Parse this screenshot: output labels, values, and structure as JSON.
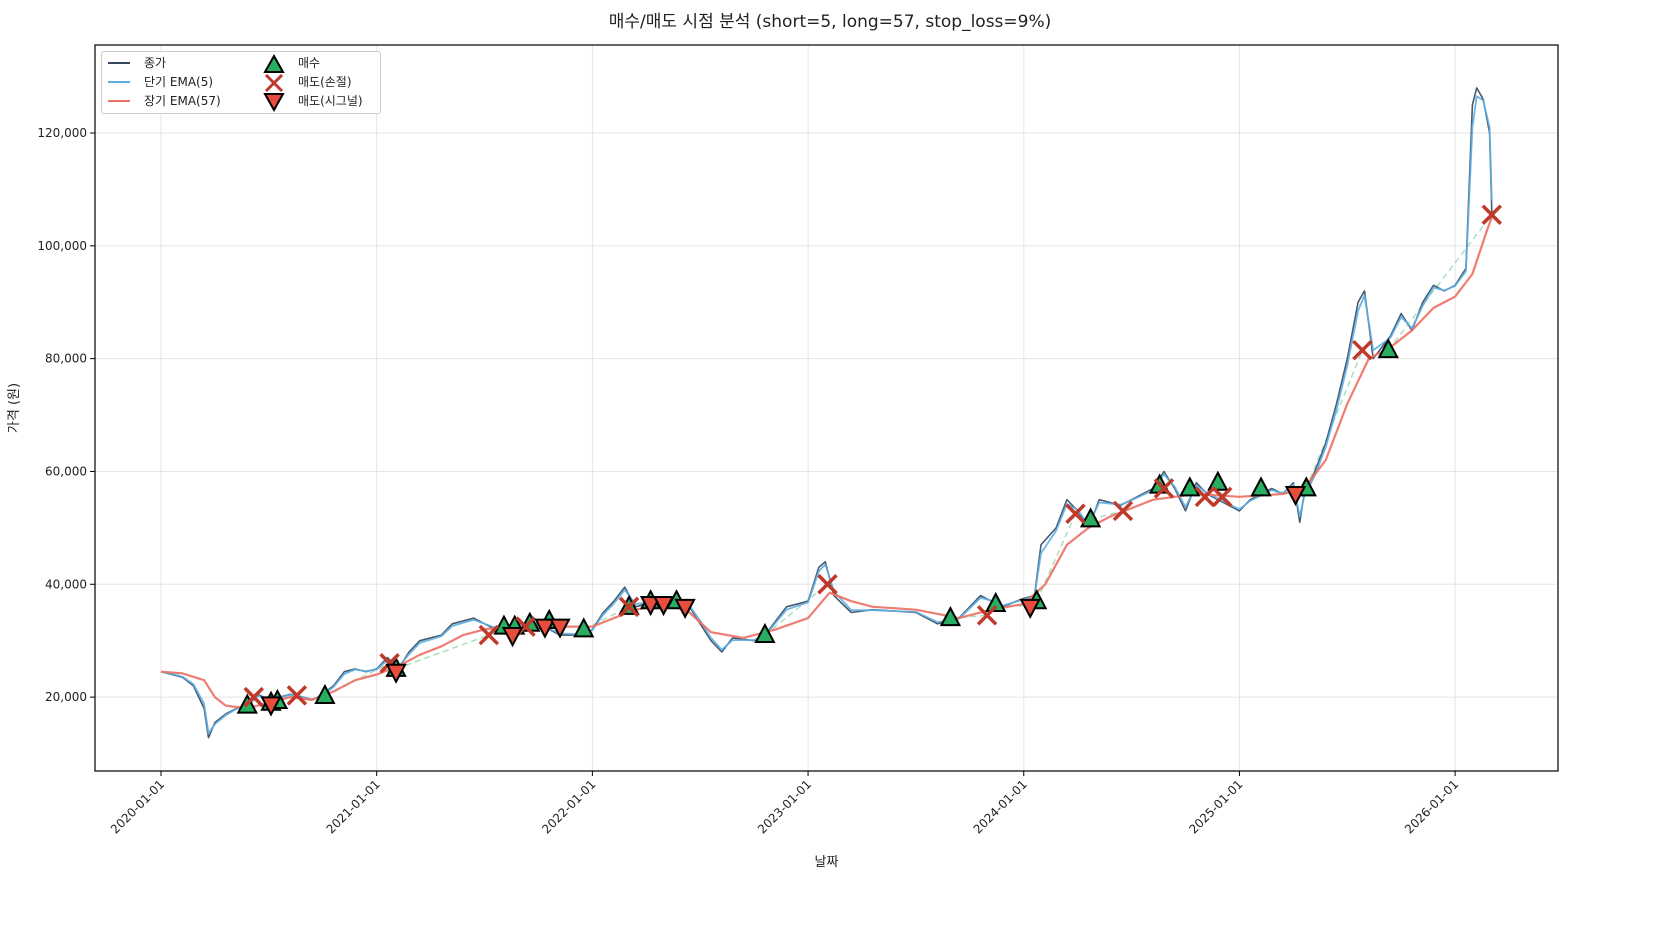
{
  "chart_data": {
    "type": "line",
    "title": "매수/매도 시점 분석 (short=5, long=57, stop_loss=9%)",
    "xlabel": "날짜",
    "ylabel": "가격 (원)",
    "x_unit": "years since 2020-01-01",
    "xlim": [
      -0.306,
      6.477
    ],
    "ylim": [
      6900,
      135600
    ],
    "grid": true,
    "legend_position": "top-left",
    "x_ticks": [
      {
        "value": 0,
        "label": "2020-01-01"
      },
      {
        "value": 1,
        "label": "2021-01-01"
      },
      {
        "value": 2,
        "label": "2022-01-01"
      },
      {
        "value": 3,
        "label": "2023-01-01"
      },
      {
        "value": 4,
        "label": "2024-01-01"
      },
      {
        "value": 5,
        "label": "2025-01-01"
      },
      {
        "value": 6,
        "label": "2026-01-01"
      }
    ],
    "y_ticks": [
      {
        "value": 20000,
        "label": "20,000"
      },
      {
        "value": 40000,
        "label": "40,000"
      },
      {
        "value": 60000,
        "label": "60,000"
      },
      {
        "value": 80000,
        "label": "80,000"
      },
      {
        "value": 100000,
        "label": "100,000"
      },
      {
        "value": 120000,
        "label": "120,000"
      }
    ],
    "series": [
      {
        "name": "종가",
        "color": "#34495e",
        "x": [
          0,
          0.05,
          0.1,
          0.15,
          0.2,
          0.22,
          0.25,
          0.3,
          0.35,
          0.4,
          0.45,
          0.5,
          0.55,
          0.6,
          0.65,
          0.7,
          0.75,
          0.8,
          0.85,
          0.9,
          0.95,
          1.0,
          1.05,
          1.1,
          1.15,
          1.2,
          1.3,
          1.35,
          1.45,
          1.55,
          1.65,
          1.75,
          1.85,
          1.95,
          2.0,
          2.05,
          2.1,
          2.15,
          2.2,
          2.3,
          2.4,
          2.45,
          2.5,
          2.55,
          2.6,
          2.65,
          2.75,
          2.8,
          2.9,
          3.0,
          3.05,
          3.08,
          3.12,
          3.2,
          3.3,
          3.5,
          3.6,
          3.7,
          3.8,
          3.85,
          3.9,
          4.0,
          4.05,
          4.08,
          4.15,
          4.2,
          4.25,
          4.3,
          4.35,
          4.45,
          4.5,
          4.6,
          4.65,
          4.7,
          4.75,
          4.8,
          4.85,
          4.9,
          5.0,
          5.05,
          5.15,
          5.2,
          5.25,
          5.28,
          5.3,
          5.35,
          5.4,
          5.45,
          5.5,
          5.55,
          5.58,
          5.62,
          5.7,
          5.75,
          5.8,
          5.85,
          5.9,
          5.95,
          6.0,
          6.05,
          6.08,
          6.1,
          6.13,
          6.16,
          6.17
        ],
        "y": [
          24500,
          24000,
          23500,
          22000,
          18000,
          12800,
          15500,
          17000,
          18000,
          18500,
          20500,
          19500,
          20000,
          20500,
          20000,
          19500,
          20500,
          22000,
          24500,
          25000,
          24500,
          25000,
          27000,
          25000,
          28000,
          30000,
          31000,
          33000,
          34000,
          32000,
          33000,
          33000,
          31000,
          31000,
          32000,
          35000,
          37000,
          39500,
          36000,
          37000,
          37000,
          36000,
          33000,
          30000,
          28000,
          30500,
          30000,
          31000,
          36000,
          37000,
          43000,
          44000,
          38000,
          35000,
          35500,
          35000,
          33000,
          34000,
          38000,
          37000,
          36000,
          37500,
          38000,
          47000,
          50000,
          55000,
          53000,
          50000,
          55000,
          54000,
          55000,
          57000,
          60000,
          57000,
          53000,
          58000,
          56000,
          55000,
          53000,
          55000,
          57000,
          56000,
          58000,
          51000,
          56000,
          60000,
          65000,
          72000,
          80000,
          90000,
          92000,
          80000,
          84000,
          88000,
          85000,
          90000,
          93000,
          92000,
          93000,
          96000,
          125000,
          128000,
          126000,
          120000,
          106000
        ]
      },
      {
        "name": "단기 EMA(5)",
        "color": "#5dade2",
        "x": [
          0,
          0.05,
          0.1,
          0.15,
          0.2,
          0.22,
          0.25,
          0.3,
          0.35,
          0.4,
          0.45,
          0.5,
          0.55,
          0.6,
          0.65,
          0.7,
          0.75,
          0.8,
          0.85,
          0.9,
          0.95,
          1.0,
          1.05,
          1.1,
          1.15,
          1.2,
          1.3,
          1.35,
          1.45,
          1.55,
          1.65,
          1.75,
          1.85,
          1.95,
          2.0,
          2.05,
          2.1,
          2.15,
          2.2,
          2.3,
          2.4,
          2.45,
          2.5,
          2.55,
          2.6,
          2.65,
          2.75,
          2.8,
          2.9,
          3.0,
          3.05,
          3.08,
          3.12,
          3.2,
          3.3,
          3.5,
          3.6,
          3.7,
          3.8,
          3.85,
          3.9,
          4.0,
          4.05,
          4.08,
          4.15,
          4.2,
          4.25,
          4.3,
          4.35,
          4.45,
          4.5,
          4.6,
          4.65,
          4.7,
          4.75,
          4.8,
          4.85,
          4.9,
          5.0,
          5.05,
          5.15,
          5.2,
          5.25,
          5.28,
          5.3,
          5.35,
          5.4,
          5.45,
          5.5,
          5.55,
          5.58,
          5.62,
          5.7,
          5.75,
          5.8,
          5.85,
          5.9,
          5.95,
          6.0,
          6.05,
          6.08,
          6.1,
          6.13,
          6.16,
          6.17
        ],
        "y": [
          24500,
          24100,
          23600,
          22300,
          18800,
          13600,
          15200,
          16800,
          17900,
          18400,
          20200,
          19700,
          19900,
          20400,
          20100,
          19600,
          20300,
          21800,
          24100,
          24900,
          24600,
          24900,
          26600,
          25300,
          27600,
          29600,
          30800,
          32600,
          33700,
          32300,
          32800,
          32900,
          31300,
          31100,
          31900,
          34600,
          36600,
          39000,
          36500,
          36900,
          37000,
          36200,
          33500,
          30500,
          28400,
          30100,
          30100,
          30900,
          35500,
          36800,
          42300,
          43500,
          38800,
          35400,
          35400,
          35100,
          33300,
          33900,
          37600,
          37100,
          36200,
          37300,
          37900,
          45500,
          49500,
          54200,
          53200,
          50500,
          54500,
          54100,
          54900,
          56700,
          59500,
          57300,
          53700,
          57500,
          56200,
          55200,
          53300,
          54800,
          56700,
          56100,
          57700,
          52000,
          55500,
          59300,
          64300,
          71000,
          78800,
          88500,
          91200,
          81500,
          83700,
          87400,
          85400,
          89400,
          92600,
          92100,
          92900,
          95500,
          121000,
          126500,
          125800,
          121000,
          108000
        ]
      },
      {
        "name": "장기 EMA(57)",
        "color": "#ec7063",
        "x": [
          0,
          0.1,
          0.2,
          0.25,
          0.3,
          0.4,
          0.5,
          0.6,
          0.7,
          0.8,
          0.9,
          1.0,
          1.1,
          1.2,
          1.3,
          1.4,
          1.5,
          1.6,
          1.8,
          2.0,
          2.1,
          2.2,
          2.35,
          2.45,
          2.55,
          2.7,
          2.85,
          3.0,
          3.1,
          3.2,
          3.3,
          3.5,
          3.7,
          3.85,
          4.0,
          4.1,
          4.2,
          4.3,
          4.4,
          4.6,
          4.8,
          5.0,
          5.2,
          5.3,
          5.4,
          5.5,
          5.6,
          5.7,
          5.8,
          5.9,
          6.0,
          6.08,
          6.15,
          6.18
        ],
        "y": [
          24500,
          24200,
          23000,
          20000,
          18500,
          18000,
          19000,
          20000,
          19500,
          21000,
          23000,
          24000,
          25500,
          27500,
          29000,
          31000,
          32000,
          32500,
          32500,
          32500,
          34000,
          35500,
          36500,
          35000,
          31500,
          30500,
          32000,
          34000,
          38500,
          37000,
          36000,
          35500,
          34000,
          35500,
          36500,
          40000,
          47000,
          50000,
          52000,
          55000,
          56000,
          55500,
          56000,
          57000,
          62000,
          72000,
          80000,
          82000,
          85000,
          89000,
          91000,
          95000,
          103000,
          106000
        ]
      }
    ],
    "markers": [
      {
        "name": "매수",
        "symbol": "triangle-up",
        "color": "#27ae60",
        "points": [
          [
            0.4,
            18500
          ],
          [
            0.51,
            19000
          ],
          [
            0.54,
            19300
          ],
          [
            0.76,
            20200
          ],
          [
            1.09,
            25000
          ],
          [
            1.59,
            32500
          ],
          [
            1.64,
            32500
          ],
          [
            1.71,
            33000
          ],
          [
            1.8,
            33500
          ],
          [
            1.96,
            32000
          ],
          [
            2.17,
            36000
          ],
          [
            2.27,
            37000
          ],
          [
            2.39,
            37000
          ],
          [
            2.8,
            31000
          ],
          [
            3.66,
            34000
          ],
          [
            3.87,
            36500
          ],
          [
            4.06,
            37000
          ],
          [
            4.31,
            51500
          ],
          [
            4.63,
            57500
          ],
          [
            4.77,
            57000
          ],
          [
            4.9,
            58000
          ],
          [
            5.1,
            57000
          ],
          [
            5.31,
            57000
          ],
          [
            5.69,
            81500
          ]
        ]
      },
      {
        "name": "매도(손절)",
        "symbol": "x",
        "color": "#c0392b",
        "points": [
          [
            0.43,
            20000
          ],
          [
            0.63,
            20300
          ],
          [
            1.06,
            26000
          ],
          [
            1.52,
            31000
          ],
          [
            1.69,
            32500
          ],
          [
            2.17,
            36000
          ],
          [
            3.09,
            40000
          ],
          [
            3.83,
            34500
          ],
          [
            4.24,
            52500
          ],
          [
            4.46,
            53000
          ],
          [
            4.65,
            57000
          ],
          [
            4.84,
            55500
          ],
          [
            4.92,
            55500
          ],
          [
            5.57,
            81500
          ],
          [
            6.17,
            105500
          ]
        ]
      },
      {
        "name": "매도(시그널)",
        "symbol": "triangle-down",
        "color": "#e74c3c",
        "points": [
          [
            0.51,
            18700
          ],
          [
            1.09,
            24500
          ],
          [
            1.63,
            31000
          ],
          [
            1.78,
            32500
          ],
          [
            1.85,
            32500
          ],
          [
            2.27,
            36500
          ],
          [
            2.33,
            36500
          ],
          [
            2.43,
            36000
          ],
          [
            4.03,
            36000
          ],
          [
            5.26,
            56000
          ]
        ]
      }
    ]
  }
}
